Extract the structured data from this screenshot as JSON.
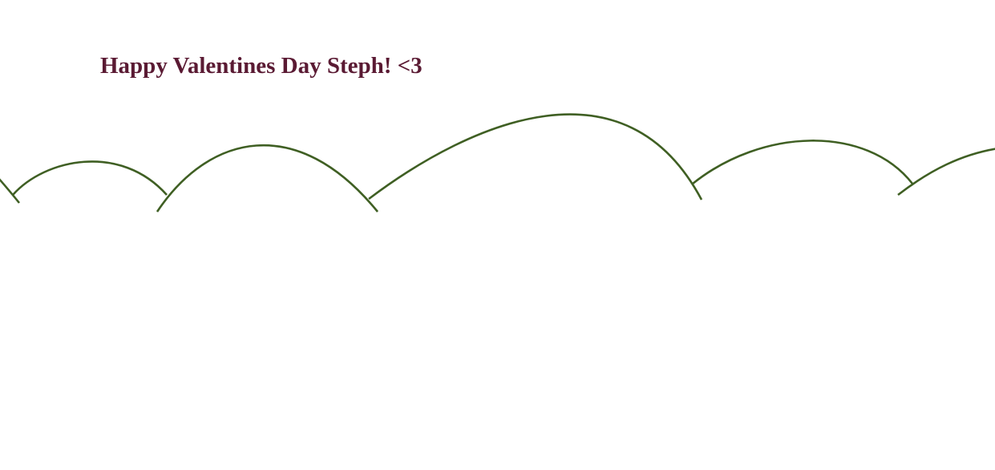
{
  "greeting": {
    "text": "Happy Valentines Day Steph! <3",
    "color": "#5a1a33"
  },
  "vine": {
    "color": "#3f5f23",
    "segment_count": 6
  }
}
